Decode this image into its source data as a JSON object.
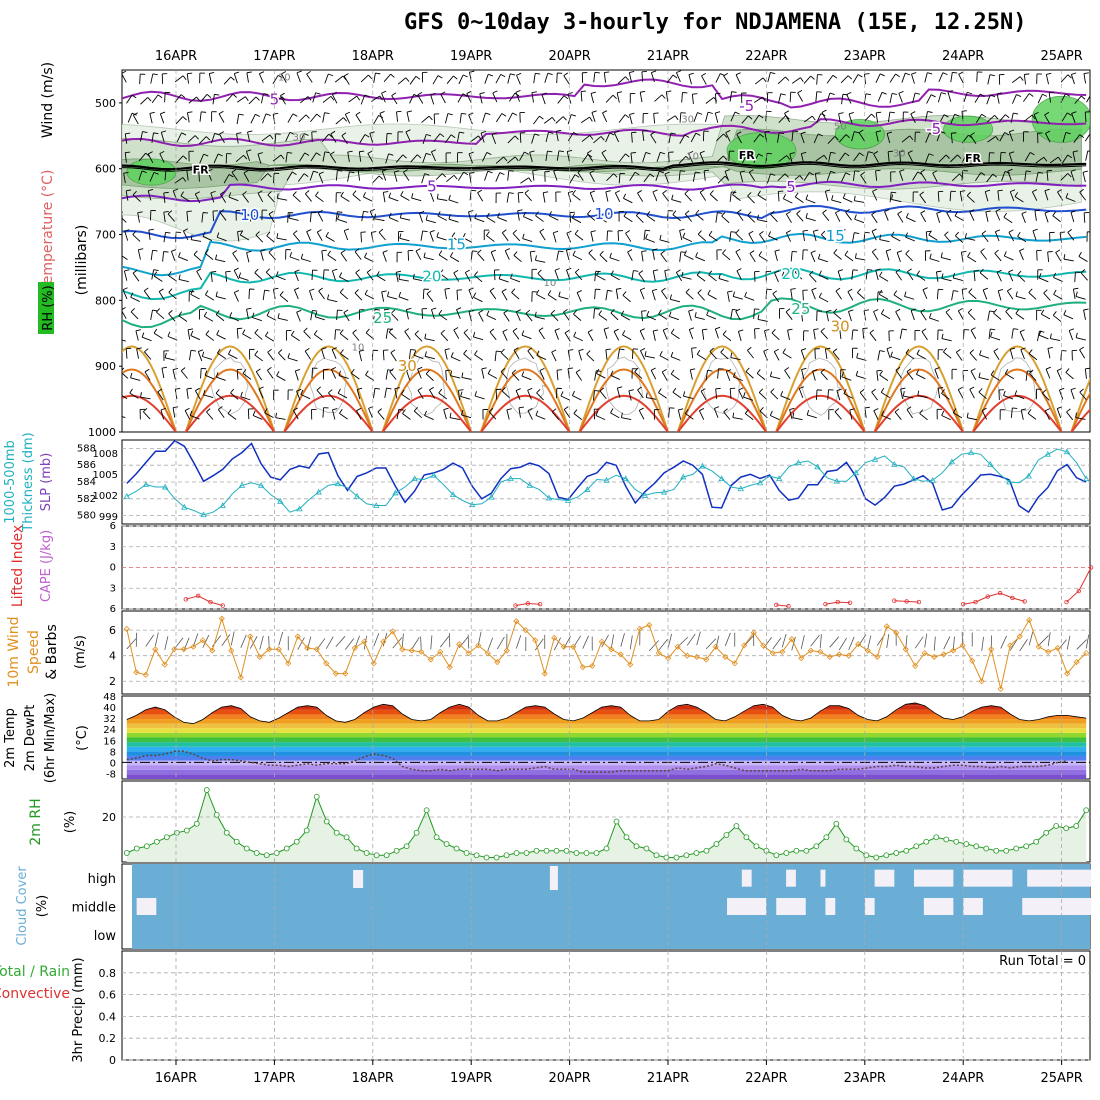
{
  "title": "GFS 0~10day 3-hourly for NDJAMENA (15E, 12.25N)",
  "colors": {
    "rh_green": "#22bb22",
    "temp_label": "#e06060",
    "wind_label": "#8040c0",
    "slp": "#1030c0",
    "thickness": "#20b0c0",
    "lifted": "#e03030",
    "cape": "#c060d0",
    "wind10m": "#e09020",
    "rh2m": "#229922",
    "cloud": "#6aaed6",
    "precip_label": "#e03030"
  },
  "chart_data": [
    {
      "id": "upper-air",
      "type": "contour",
      "x_ticks": [
        "16APR",
        "17APR",
        "18APR",
        "19APR",
        "20APR",
        "21APR",
        "22APR",
        "23APR",
        "24APR",
        "25APR"
      ],
      "ylabel": "(millibars)",
      "left_labels": [
        "RH (%)",
        "Temperature (°C)",
        "Wind (m/s)"
      ],
      "y_ticks": [
        500,
        600,
        700,
        800,
        900,
        1000
      ],
      "ylim": [
        1000,
        450
      ],
      "isotherm_labels": [
        {
          "value": "5",
          "level": 495,
          "day": 1.0
        },
        {
          "value": "-5",
          "level": 505,
          "day": 5.8
        },
        {
          "value": "-5",
          "level": 540,
          "day": 7.7
        },
        {
          "value": "FR",
          "level": 600,
          "day": 0.25
        },
        {
          "value": "FR",
          "level": 578,
          "day": 5.8
        },
        {
          "value": "FR",
          "level": 582,
          "day": 8.1
        },
        {
          "value": "5",
          "level": 627,
          "day": 2.6
        },
        {
          "value": "5",
          "level": 628,
          "day": 6.25
        },
        {
          "value": "10",
          "level": 670,
          "day": 0.75
        },
        {
          "value": "10",
          "level": 669,
          "day": 4.35
        },
        {
          "value": "15",
          "level": 715,
          "day": 2.85
        },
        {
          "value": "15",
          "level": 702,
          "day": 6.7
        },
        {
          "value": "20",
          "level": 764,
          "day": 2.6
        },
        {
          "value": "20",
          "level": 760,
          "day": 6.25
        },
        {
          "value": "25",
          "level": 827,
          "day": 2.1
        },
        {
          "value": "25",
          "level": 813,
          "day": 6.35
        },
        {
          "value": "30",
          "level": 900,
          "day": 2.35
        },
        {
          "value": "30",
          "level": 840,
          "day": 6.75
        }
      ],
      "rh_labels": [
        {
          "value": "30",
          "level": 551,
          "day": 1.25
        },
        {
          "value": "30",
          "level": 524,
          "day": 5.2
        },
        {
          "value": "50",
          "level": 534,
          "day": 6.75
        },
        {
          "value": "30",
          "level": 575,
          "day": 7.35
        },
        {
          "value": "10",
          "level": 772,
          "day": 3.8
        },
        {
          "value": "10",
          "level": 870,
          "day": 1.85
        },
        {
          "value": "10",
          "level": 580,
          "day": 5.25
        },
        {
          "value": "10",
          "level": 460,
          "day": 1.1
        }
      ]
    },
    {
      "id": "slp-thickness",
      "type": "line",
      "left_labels": [
        "1000-500mb",
        "Thickness (dm)",
        "SLP (mb)"
      ],
      "series": [
        {
          "name": "SLP",
          "color": "#1030c0",
          "values": [
            1003.8,
            1005.2,
            1006.8,
            1008.4,
            1008.4,
            1009.9,
            1009.1,
            1006.7,
            1004.1,
            1004.9,
            1005.8,
            1007.3,
            1008.2,
            1009.5,
            1006.6,
            1004.7,
            1004.3,
            1005.8,
            1006.3,
            1006.0,
            1008.0,
            1008.2,
            1004.9,
            1002.8,
            1004.8,
            1005.3,
            1006.0,
            1006.0,
            1003.4,
            1001.1,
            1002.7,
            1005.0,
            1005.3,
            1005.8,
            1006.7,
            1006.0,
            1003.4,
            1001.6,
            1002.4,
            1004.5,
            1005.9,
            1006.1,
            1006.7,
            1006.3,
            1005.2,
            1001.8,
            1001.5,
            1003.2,
            1004.8,
            1005.3,
            1006.8,
            1006.4,
            1003.4,
            1001.0,
            1002.6,
            1003.8,
            1005.3,
            1006.1,
            1007.0,
            1006.4,
            1005.1,
            1000.4,
            1000.3,
            1003.5,
            1004.7,
            1005.1,
            1004.5,
            1005.0,
            1002.8,
            1001.4,
            1001.7,
            1003.6,
            1003.6,
            1005.5,
            1005.7,
            1006.8,
            1004.8,
            1001.6,
            1000.7,
            1001.8,
            1003.4,
            1003.7,
            1004.3,
            1004.9,
            1003.8,
            1000.0,
            1000.4,
            1002.1,
            1003.5,
            1005.0,
            1005.1,
            1004.8,
            1004.3,
            1000.6,
            999.7,
            1001.8,
            1003.2,
            1005.6,
            1006.5,
            1004.6,
            1004.0
          ],
          "axis": [
            999,
            1002,
            1005,
            1008
          ]
        },
        {
          "name": "Thickness",
          "color": "#20b0c0",
          "values": [
            582.3,
            582.9,
            583.7,
            583.4,
            583.4,
            582.0,
            581.0,
            580.6,
            580.1,
            580.4,
            581.2,
            582.6,
            583.6,
            583.9,
            583.6,
            582.5,
            581.7,
            580.4,
            580.8,
            581.9,
            582.8,
            583.6,
            583.8,
            583.3,
            582.3,
            581.4,
            581.2,
            581.2,
            582.7,
            583.4,
            584.4,
            584.3,
            584.8,
            583.7,
            582.5,
            581.8,
            581.3,
            581.4,
            582.2,
            584.0,
            584.4,
            584.4,
            583.6,
            583.1,
            582.1,
            581.9,
            581.8,
            582.2,
            583.1,
            584.3,
            584.2,
            584.8,
            584.4,
            583.1,
            582.4,
            582.7,
            582.8,
            583.1,
            584.6,
            584.9,
            585.9,
            585.3,
            584.4,
            583.4,
            583.2,
            583.6,
            583.9,
            584.7,
            584.4,
            585.8,
            586.3,
            586.5,
            585.8,
            584.5,
            584.1,
            584.1,
            585.1,
            586.3,
            586.7,
            587.1,
            586.1,
            585.8,
            584.4,
            584.1,
            584.2,
            585.1,
            586.4,
            587.3,
            587.5,
            587.3,
            586.1,
            584.9,
            584.0,
            583.9,
            584.7,
            586.6,
            587.3,
            587.9,
            587.6,
            586.3,
            584.4
          ],
          "axis": [
            580,
            582,
            584,
            586,
            588
          ]
        }
      ]
    },
    {
      "id": "lifted-cape",
      "type": "line",
      "left_labels": [
        "Lifted Index",
        "CAPE (J/kg)"
      ],
      "y_ticks": [
        -6,
        -3,
        0,
        3,
        6
      ],
      "ylim": [
        -6,
        6
      ],
      "series": [
        {
          "name": "Lifted Index",
          "color": "#e03030",
          "segments": [
            {
              "day": 0.1,
              "values": [
                4.6,
                4.1,
                5.0,
                5.5
              ]
            },
            {
              "day": 3.45,
              "values": [
                5.5,
                5.2,
                5.3
              ]
            },
            {
              "day": 6.1,
              "values": [
                5.4,
                5.6
              ]
            },
            {
              "day": 6.6,
              "values": [
                5.3,
                5.0,
                5.1
              ]
            },
            {
              "day": 7.3,
              "values": [
                4.8,
                4.9,
                5.0
              ]
            },
            {
              "day": 8.0,
              "values": [
                5.3,
                5.0,
                4.2,
                3.7,
                4.4,
                4.9
              ]
            },
            {
              "day": 9.05,
              "values": [
                5.0,
                3.4,
                0.0
              ]
            }
          ]
        }
      ]
    },
    {
      "id": "wind-10m",
      "type": "line",
      "left_labels": [
        "10m Wind",
        "Speed",
        "& Barbs"
      ],
      "ylabel": "(m/s)",
      "y_ticks": [
        2,
        4,
        6
      ],
      "series": [
        {
          "name": "10m Wind Speed",
          "color": "#e09020",
          "values": [
            6.1,
            2.7,
            2.5,
            4.5,
            3.3,
            4.5,
            4.5,
            4.7,
            5.2,
            4.4,
            6.9,
            4.4,
            2.3,
            5.5,
            3.9,
            4.5,
            4.5,
            3.4,
            5.5,
            4.6,
            4.5,
            3.4,
            2.6,
            2.6,
            4.6,
            5.1,
            3.4,
            5.1,
            5.9,
            4.5,
            4.4,
            4.3,
            3.7,
            4.3,
            3.1,
            4.9,
            4.2,
            4.8,
            4.2,
            3.5,
            4.4,
            6.7,
            6.0,
            5.2,
            2.6,
            5.4,
            4.7,
            4.7,
            3.1,
            3.2,
            5.1,
            4.5,
            4.1,
            3.3,
            6.1,
            6.4,
            4.2,
            3.8,
            4.7,
            4.0,
            3.9,
            3.7,
            4.7,
            3.9,
            3.4,
            4.8,
            5.8,
            4.8,
            4.2,
            4.3,
            5.3,
            3.8,
            4.4,
            4.3,
            3.9,
            4.1,
            4.0,
            4.9,
            4.4,
            3.9,
            6.3,
            5.8,
            4.5,
            3.2,
            4.2,
            3.9,
            4.1,
            4.4,
            4.8,
            3.6,
            2.0,
            4.5,
            1.4,
            4.8,
            5.5,
            6.8,
            4.7,
            4.3,
            4.6,
            2.6,
            3.5,
            4.2
          ]
        }
      ]
    },
    {
      "id": "temp-2m",
      "type": "area",
      "left_labels": [
        "2m Temp",
        "2m DewPt",
        "(6hr Min/Max)"
      ],
      "ylabel": "(°C)",
      "y_ticks": [
        -8,
        0,
        8,
        16,
        24,
        32,
        40,
        48
      ],
      "ylim": [
        -12,
        48
      ],
      "series": [
        {
          "name": "2m Temp",
          "values": [
            31,
            34,
            38,
            40,
            38,
            33,
            29,
            28,
            31,
            36,
            40,
            41,
            39,
            33,
            30,
            29,
            32,
            36,
            40,
            41,
            40,
            34,
            30,
            29,
            31,
            36,
            40,
            42,
            41,
            35,
            31,
            30,
            31,
            36,
            40,
            42,
            40,
            34,
            30,
            30,
            32,
            36,
            40,
            41,
            40,
            35,
            31,
            30,
            32,
            36,
            40,
            41,
            40,
            34,
            30,
            30,
            31,
            37,
            41,
            42,
            40,
            36,
            31,
            30,
            33,
            37,
            41,
            42,
            40,
            34,
            31,
            30,
            32,
            37,
            41,
            41,
            39,
            34,
            31,
            30,
            33,
            38,
            42,
            43,
            41,
            36,
            32,
            31,
            33,
            37,
            40,
            41,
            40,
            35,
            31,
            30,
            31,
            33,
            34,
            34,
            33,
            32
          ]
        },
        {
          "name": "2m DewPt",
          "values": [
            2,
            3,
            5,
            5,
            6,
            8,
            8,
            6,
            3,
            1,
            2,
            2,
            1,
            0,
            -1,
            -2,
            -2,
            -3,
            -2,
            -1,
            -2,
            -1,
            -1,
            -1,
            1,
            4,
            6,
            5,
            3,
            -3,
            -5,
            -6,
            -6,
            -5,
            -6,
            -5,
            -5,
            -5,
            -5,
            -6,
            -5,
            -5,
            -5,
            -4,
            -3,
            -5,
            -5,
            -5,
            -7,
            -7,
            -7,
            -7,
            -6,
            -6,
            -6,
            -6,
            -6,
            -6,
            -4,
            -5,
            -4,
            -3,
            -1,
            -2,
            -4,
            -6,
            -6,
            -6,
            -6,
            -6,
            -6,
            -5,
            -6,
            -6,
            -6,
            -5,
            -5,
            -5,
            -4,
            -3,
            -3,
            -2,
            -3,
            -3,
            -4,
            -4,
            -3,
            -2,
            -2,
            -3,
            -3,
            -4,
            -3,
            -4,
            -3,
            -3,
            -3,
            -2,
            0,
            1
          ]
        }
      ]
    },
    {
      "id": "rh-2m",
      "type": "area",
      "left_labels": [
        "2m RH"
      ],
      "ylabel": "(%)",
      "y_ticks": [
        20
      ],
      "ylim": [
        0,
        36
      ],
      "series": [
        {
          "name": "2m RH",
          "color": "#229922",
          "values": [
            4,
            6,
            7,
            9,
            11,
            13,
            14,
            17,
            32,
            21,
            13,
            9,
            6,
            4,
            3,
            4,
            6,
            9,
            14,
            29,
            18,
            13,
            11,
            6,
            4,
            3,
            3,
            5,
            7,
            13,
            23,
            11,
            8,
            6,
            4,
            3,
            2,
            2,
            3,
            4,
            4,
            5,
            5,
            5,
            5,
            4,
            4,
            4,
            6,
            18,
            11,
            7,
            6,
            3,
            2,
            2,
            3,
            4,
            5,
            8,
            12,
            16,
            11,
            7,
            5,
            3,
            4,
            5,
            5,
            7,
            11,
            17,
            10,
            6,
            3,
            2,
            3,
            4,
            5,
            7,
            9,
            11,
            10,
            9,
            8,
            7,
            6,
            5,
            5,
            6,
            7,
            9,
            13,
            16,
            15,
            16,
            23
          ]
        }
      ]
    },
    {
      "id": "cloud-cover",
      "type": "heatmap",
      "left_labels": [
        "Cloud Cover"
      ],
      "ylabel": "(%)",
      "rows": [
        "high",
        "middle",
        "low"
      ]
    },
    {
      "id": "precip",
      "type": "bar",
      "left_labels": [
        "Total / Rain",
        "Convective"
      ],
      "ylabel": "3hr Precip (mm)",
      "y_ticks": [
        0,
        0.2,
        0.4,
        0.6,
        0.8
      ],
      "ylim": [
        0,
        1
      ],
      "run_total": "Run Total = 0",
      "values": []
    }
  ]
}
